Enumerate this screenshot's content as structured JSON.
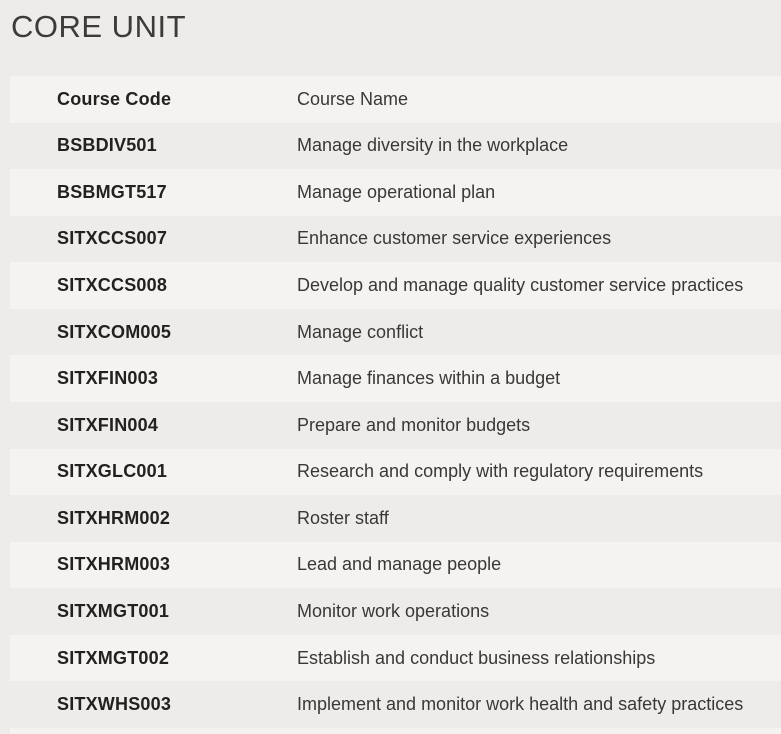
{
  "page": {
    "title": "CORE UNIT"
  },
  "table": {
    "headers": {
      "code": "Course Code",
      "name": "Course Name"
    },
    "rows": [
      {
        "code": "BSBDIV501",
        "name": "Manage diversity in the workplace"
      },
      {
        "code": "BSBMGT517",
        "name": "Manage operational plan"
      },
      {
        "code": "SITXCCS007",
        "name": "Enhance customer service experiences"
      },
      {
        "code": "SITXCCS008",
        "name": "Develop and manage quality customer service practices"
      },
      {
        "code": "SITXCOM005",
        "name": "Manage conflict"
      },
      {
        "code": "SITXFIN003",
        "name": "Manage finances within a budget"
      },
      {
        "code": "SITXFIN004",
        "name": "Prepare and monitor budgets"
      },
      {
        "code": "SITXGLC001",
        "name": "Research and comply with regulatory requirements"
      },
      {
        "code": "SITXHRM002",
        "name": "Roster staff"
      },
      {
        "code": "SITXHRM003",
        "name": "Lead and manage people"
      },
      {
        "code": "SITXMGT001",
        "name": "Monitor work operations"
      },
      {
        "code": "SITXMGT002",
        "name": "Establish and conduct business relationships"
      },
      {
        "code": "SITXWHS003",
        "name": "Implement and monitor work health and safety practices"
      }
    ]
  },
  "colors": {
    "page_background": "#edecea",
    "light_row_background": "#f4f3f2",
    "title_text": "#3d3a37",
    "code_text": "#22211f",
    "name_text": "#3a3836"
  }
}
